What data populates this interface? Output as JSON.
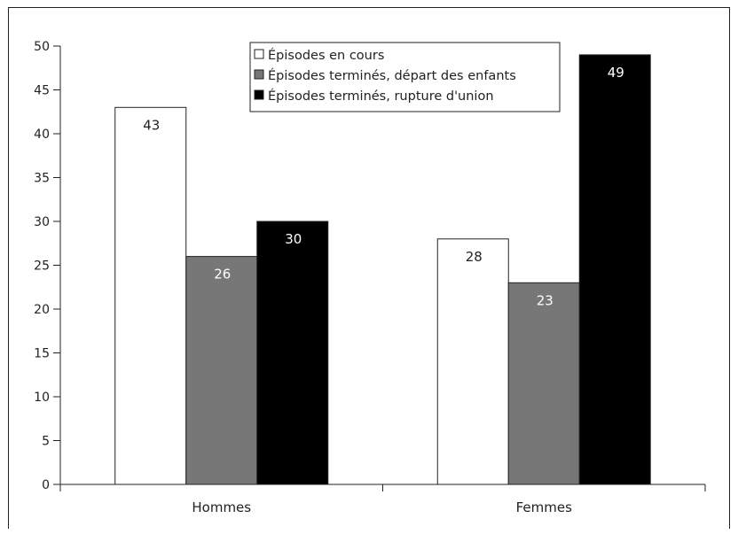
{
  "chart_data": {
    "type": "bar",
    "categories": [
      "Hommes",
      "Femmes"
    ],
    "series": [
      {
        "name": "Épisodes en cours",
        "values": [
          43,
          28
        ],
        "color": "#ffffff"
      },
      {
        "name": "Épisodes terminés, départ des enfants",
        "values": [
          26,
          23
        ],
        "color": "#777777"
      },
      {
        "name": "Épisodes terminés, rupture d'union",
        "values": [
          30,
          49
        ],
        "color": "#000000"
      }
    ],
    "data_labels": [
      [
        "43",
        "28"
      ],
      [
        "26",
        "23"
      ],
      [
        "30",
        "49"
      ]
    ],
    "ylim": [
      0,
      50
    ],
    "yticks": [
      "0",
      "5",
      "10",
      "15",
      "20",
      "25",
      "30",
      "35",
      "40",
      "45",
      "50"
    ],
    "grid": false,
    "legend_position": "top-center"
  }
}
